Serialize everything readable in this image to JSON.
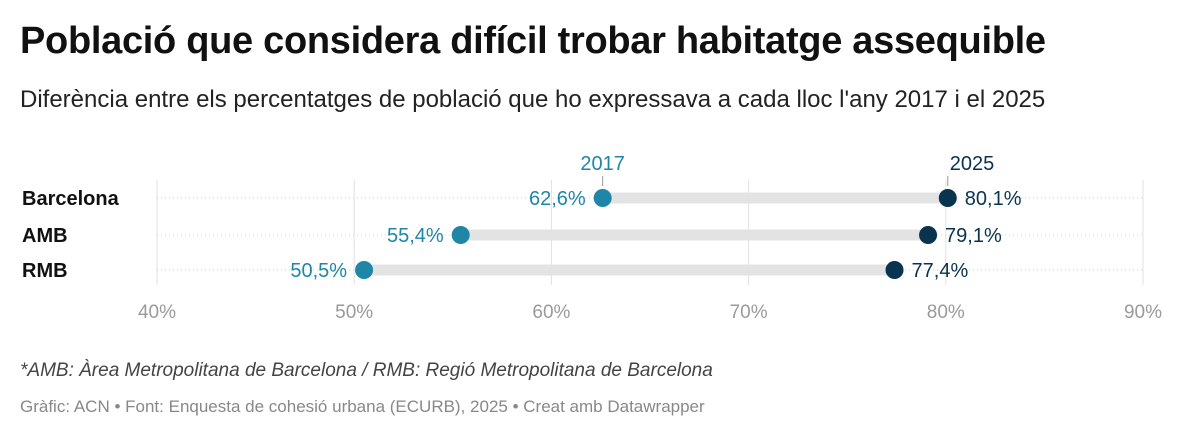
{
  "title": "Població que considera difícil trobar habitatge assequible",
  "subtitle": "Diferència entre els percentatges de població que ho expressava a cada lloc l'any 2017 i el 2025",
  "notes": "*AMB: Àrea Metropolitana de Barcelona / RMB: Regió Metropolitana de Barcelona",
  "source": "Gràfic: ACN • Font: Enquesta de cohesió urbana (ECURB), 2025 • Creat amb Datawrapper",
  "chart_data": {
    "type": "dumbbell",
    "categories": [
      "Barcelona",
      "AMB",
      "RMB"
    ],
    "series": [
      {
        "name": "2017",
        "values": [
          62.6,
          55.4,
          50.5
        ],
        "labels": [
          "62,6%",
          "55,4%",
          "50,5%"
        ],
        "color": "#1f86a8"
      },
      {
        "name": "2025",
        "values": [
          80.1,
          79.1,
          77.4
        ],
        "labels": [
          "80,1%",
          "79,1%",
          "77,4%"
        ],
        "color": "#0a3350"
      }
    ],
    "xlim": [
      40,
      90
    ],
    "xticks": [
      40,
      50,
      60,
      70,
      80,
      90
    ],
    "xtick_labels": [
      "40%",
      "50%",
      "60%",
      "70%",
      "80%",
      "90%"
    ],
    "grid": true
  }
}
